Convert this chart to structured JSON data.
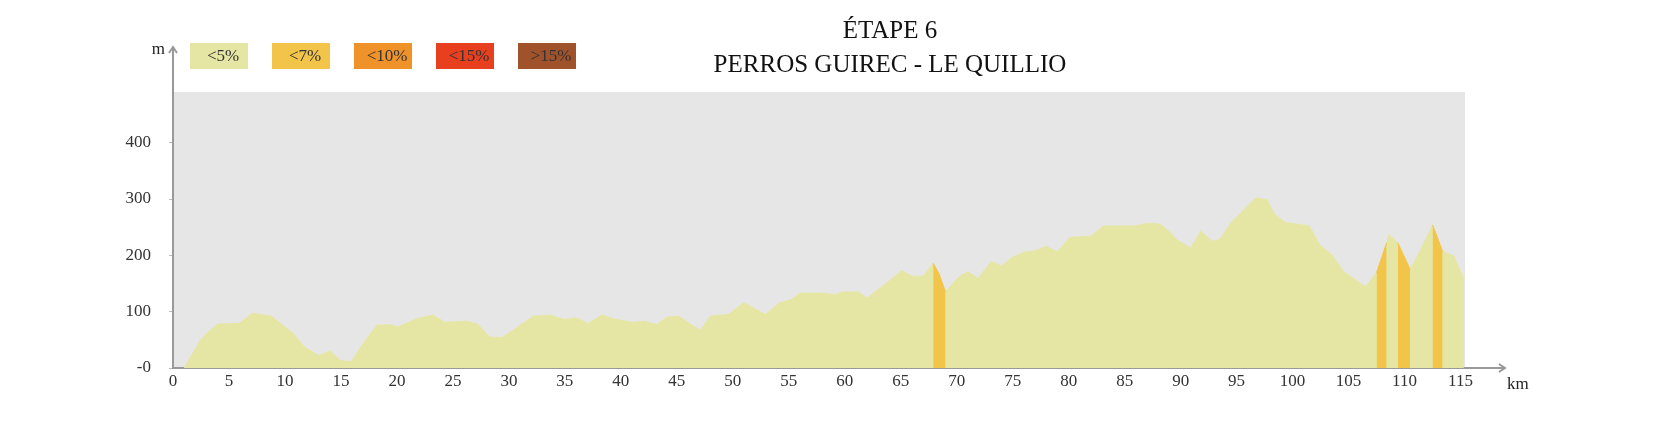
{
  "chart_data": {
    "type": "area",
    "title": "ÉTAPE 6",
    "subtitle": "PERROS GUIREC - LE QUILLIO",
    "xlabel": "km",
    "ylabel": "m",
    "xlim": [
      0,
      115.4
    ],
    "xticks": [
      0,
      5,
      10,
      15,
      20,
      25,
      30,
      35,
      40,
      45,
      50,
      55,
      60,
      65,
      70,
      75,
      80,
      85,
      90,
      95,
      100,
      105,
      110,
      115
    ],
    "ylim": [
      0,
      490
    ],
    "yticks": [
      {
        "value": 0,
        "label": "-0"
      },
      100,
      200,
      300,
      400
    ],
    "grid": false,
    "legend": "top left",
    "marker": "none",
    "series": [
      {
        "name": "<5%",
        "color": "#e6e6a4",
        "x": [
          1.0,
          2.4,
          3.1,
          4.0,
          5.9,
          7.1,
          8.8,
          10.8,
          11.7,
          13.0,
          14.0,
          15.0,
          15.9,
          17.0,
          18.2,
          19.3,
          20.1,
          21.7,
          23.2,
          24.3,
          26.2,
          27.2,
          28.3,
          29.4,
          31.0,
          32.2,
          33.6,
          35.0,
          36.0,
          37.1,
          38.3,
          39.4,
          41.0,
          42.1,
          43.2,
          44.2,
          45.2,
          46.1,
          47.1,
          48.0,
          49.6,
          51.0,
          52.9,
          54.2,
          55.2,
          56.0,
          58.0,
          59.2,
          59.8,
          61.2,
          62.0,
          63.8,
          65.1,
          66.0,
          67.0,
          67.9,
          68.4,
          69.0,
          70.2,
          71.0,
          71.9,
          73.1,
          74.0,
          75.0,
          76.1,
          77.0,
          78.0,
          79.0,
          80.1,
          82.0,
          83.1,
          85.8,
          87.1,
          88.2,
          89.1,
          89.7,
          90.9,
          91.8,
          92.8,
          93.5,
          94.5,
          95.4,
          96.7,
          97.7,
          98.4,
          99.4,
          100.5,
          101.5,
          102.4,
          103.5,
          104.6,
          105.6,
          106.5,
          107.5,
          108.4,
          108.6,
          109.4,
          110.5,
          111.3,
          112.5,
          113.4,
          114.4,
          115.3
        ],
        "values": [
          0,
          48,
          63,
          78,
          79,
          97,
          92,
          60,
          38,
          22,
          30,
          13,
          11,
          44,
          76,
          77,
          73,
          87,
          94,
          81,
          83,
          78,
          55,
          54,
          76,
          92,
          94,
          86,
          89,
          79,
          94,
          87,
          81,
          83,
          77,
          91,
          92,
          79,
          67,
          92,
          95,
          116,
          95,
          116,
          121,
          133,
          133,
          130,
          135,
          135,
          124,
          152,
          173,
          163,
          163,
          186,
          168,
          135,
          162,
          171,
          159,
          189,
          181,
          197,
          206,
          208,
          216,
          206,
          232,
          234,
          252,
          252,
          257,
          255,
          240,
          227,
          213,
          243,
          225,
          228,
          258,
          276,
          302,
          299,
          273,
          258,
          255,
          252,
          219,
          201,
          170,
          157,
          144,
          169,
          222,
          237,
          222,
          175,
          204,
          254,
          207,
          199,
          157
        ]
      },
      {
        "name": "<7%",
        "color": "#f2c54a",
        "x": [
          67.9,
          68.4,
          69.0,
          88.0,
          107.5,
          108.4,
          109.0,
          109.4,
          110.5,
          111.5,
          112.5,
          113.4
        ],
        "values": [
          186,
          168,
          135,
          null,
          169,
          222,
          null,
          222,
          175,
          null,
          254,
          207
        ]
      },
      {
        "name": "<10%",
        "color": "#f0922a"
      },
      {
        "name": "<15%",
        "color": "#e8401f"
      },
      {
        "name": ">15%",
        "color": "#a0522a"
      }
    ]
  }
}
